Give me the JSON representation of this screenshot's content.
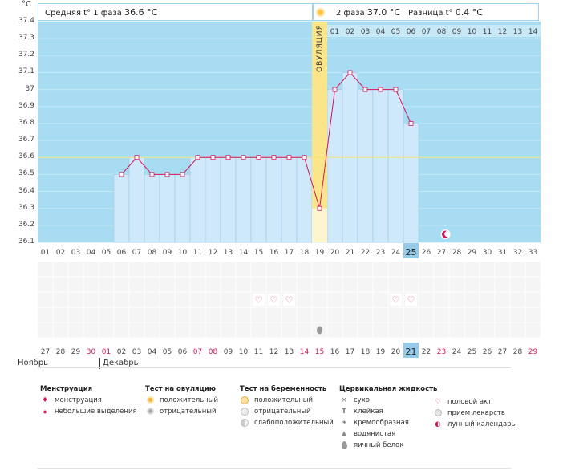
{
  "header": {
    "unit": "°C",
    "phase1_label": "Средняя t° 1 фаза",
    "phase1_value": "36.6 °C",
    "phase2_label": "2 фаза",
    "phase2_value": "37.0 °C",
    "diff_label": "Разница t°",
    "diff_value": "0.4 °C"
  },
  "ovulation_label": "ОВУЛЯЦИЯ",
  "post_ovulation_days": [
    "01",
    "02",
    "03",
    "04",
    "05",
    "06",
    "07",
    "08",
    "09",
    "10",
    "11",
    "12",
    "13",
    "14"
  ],
  "cycle_days": [
    "01",
    "02",
    "03",
    "04",
    "05",
    "06",
    "07",
    "08",
    "09",
    "10",
    "11",
    "12",
    "13",
    "14",
    "15",
    "16",
    "17",
    "18",
    "19",
    "20",
    "21",
    "22",
    "23",
    "24",
    "25",
    "26",
    "27",
    "28",
    "29",
    "30",
    "31",
    "32",
    "33"
  ],
  "cycle_day_today": "25",
  "calendar_dates": [
    "27",
    "28",
    "29",
    "30",
    "01",
    "02",
    "03",
    "04",
    "05",
    "06",
    "07",
    "08",
    "09",
    "10",
    "11",
    "12",
    "13",
    "14",
    "15",
    "16",
    "17",
    "18",
    "19",
    "20",
    "21",
    "22",
    "23",
    "24",
    "25",
    "26",
    "27",
    "28",
    "29"
  ],
  "calendar_date_today": "21",
  "calendar_red_indices": [
    3,
    4,
    10,
    11,
    17,
    18,
    26,
    32,
    33
  ],
  "months": {
    "first": "Ноябрь",
    "second": "Декабрь"
  },
  "chart_data": {
    "type": "line",
    "title": "",
    "xlabel": "",
    "ylabel": "°C",
    "ylim": [
      36.1,
      37.4
    ],
    "yticks": [
      "36.1",
      "36.2",
      "36.3",
      "36.4",
      "36.5",
      "36.6",
      "36.7",
      "36.8",
      "36.9",
      "37",
      "37.1",
      "37.2",
      "37.3",
      "37.4"
    ],
    "coverline": 36.6,
    "ovulation_day": 19,
    "series": [
      {
        "x": [
          6,
          7,
          8,
          9,
          10,
          11,
          12,
          13,
          14,
          15,
          16,
          17,
          18,
          19,
          20,
          21,
          22,
          23,
          24,
          25
        ],
        "values": [
          36.5,
          36.6,
          36.5,
          36.5,
          36.5,
          36.6,
          36.6,
          36.6,
          36.6,
          36.6,
          36.6,
          36.6,
          36.6,
          36.3,
          37.0,
          37.1,
          37.0,
          37.0,
          37.0,
          36.8
        ]
      }
    ],
    "markers": {
      "moon_day": 27,
      "intercourse_days": [
        15,
        16,
        17,
        24,
        25
      ],
      "fluid_day": 19
    }
  },
  "legend": {
    "menstruation": {
      "title": "Менструация",
      "items": [
        "менструация",
        "небольшие выделения"
      ]
    },
    "ovulation_test": {
      "title": "Тест на овуляцию",
      "items": [
        "положительный",
        "отрицательный"
      ]
    },
    "pregnancy_test": {
      "title": "Тест на беременность",
      "items": [
        "положительный",
        "отрицательный",
        "слабоположительный"
      ]
    },
    "cervical": {
      "title": "Цервикальная жидкость",
      "items": [
        "сухо",
        "клейкая",
        "кремообразная",
        "водянистая",
        "яичный белок"
      ]
    },
    "other": {
      "items": [
        "половой акт",
        "прием лекарств",
        "лунный календарь"
      ]
    }
  },
  "colors": {
    "sky": "#a8dcf3",
    "bar": "#cfe9fb",
    "bar_edge": "#9bc6e3",
    "line": "#d4145a",
    "ovulation": "#fbe58a",
    "today": "#95cbe9",
    "red_date": "#d4145a"
  }
}
